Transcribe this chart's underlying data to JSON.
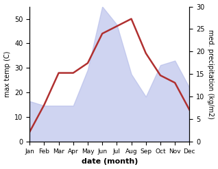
{
  "months": [
    "Jan",
    "Feb",
    "Mar",
    "Apr",
    "May",
    "Jun",
    "Jul",
    "Aug",
    "Sep",
    "Oct",
    "Nov",
    "Dec"
  ],
  "temperature": [
    4,
    15,
    28,
    28,
    32,
    44,
    47,
    50,
    36,
    27,
    24,
    13
  ],
  "precipitation": [
    9,
    8,
    8,
    8,
    16,
    30,
    26,
    15,
    10,
    17,
    18,
    12
  ],
  "temp_color": "#b03030",
  "precip_fill_color": "#b0b8e8",
  "precip_fill_alpha": 0.6,
  "ylim_left": [
    0,
    55
  ],
  "ylim_right": [
    0,
    30
  ],
  "yticks_left": [
    0,
    10,
    20,
    30,
    40,
    50
  ],
  "yticks_right": [
    0,
    5,
    10,
    15,
    20,
    25,
    30
  ],
  "ylabel_left": "max temp (C)",
  "ylabel_right": "med. precipitation (kg/m2)",
  "xlabel": "date (month)",
  "temp_linewidth": 1.8,
  "fig_width": 3.18,
  "fig_height": 2.47,
  "dpi": 100
}
